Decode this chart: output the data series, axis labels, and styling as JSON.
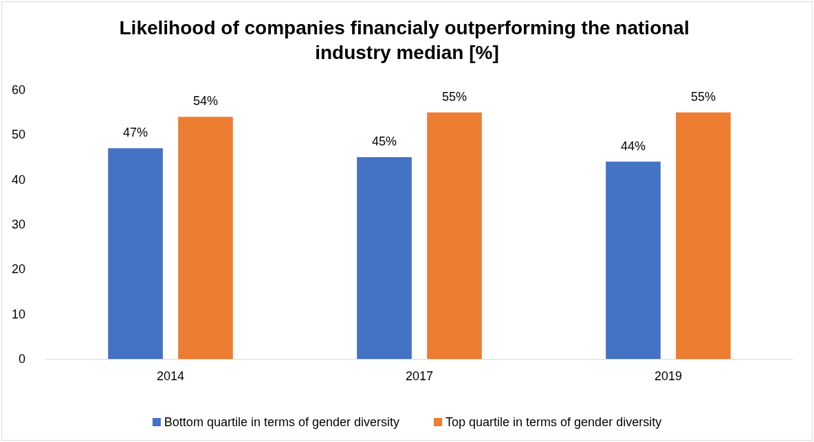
{
  "chart_data": {
    "type": "bar",
    "title": "Likelihood of companies financialy outperforming the national industry median [%]",
    "categories": [
      "2014",
      "2017",
      "2019"
    ],
    "series": [
      {
        "name": "Bottom quartile in terms of gender diversity",
        "color": "#4472c4",
        "values": [
          47,
          45,
          44
        ],
        "value_labels": [
          "47%",
          "45%",
          "44%"
        ]
      },
      {
        "name": "Top quartile in terms of gender diversity",
        "color": "#ed7d31",
        "values": [
          54,
          55,
          55
        ],
        "value_labels": [
          "54%",
          "55%",
          "55%"
        ]
      }
    ],
    "ylim": [
      0,
      60
    ],
    "yticks": [
      0,
      10,
      20,
      30,
      40,
      50,
      60
    ],
    "grid": false,
    "legend": "bottom"
  }
}
